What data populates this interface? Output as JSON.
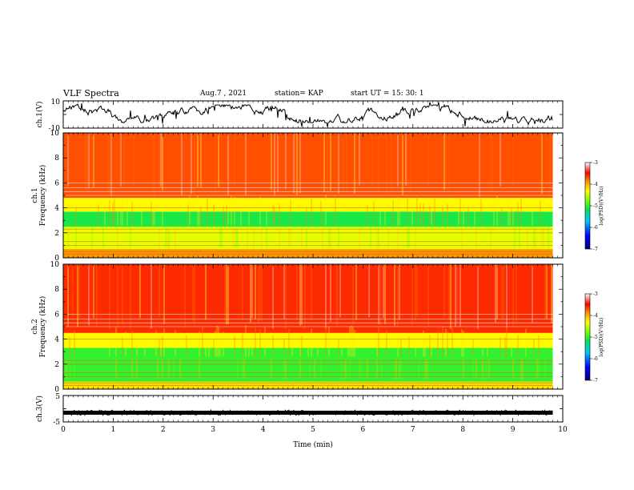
{
  "header": {
    "title": "VLF Spectra",
    "date": "Aug.7 , 2021",
    "station": "station= KAP",
    "start": "start  UT =    15: 30: 1"
  },
  "chart_data": [
    {
      "type": "line",
      "panel": "ch1-waveform",
      "ylabel": "ch.1(V)",
      "ylim": [
        -10,
        10
      ],
      "yticks": [
        "10",
        "-10"
      ],
      "xlim": [
        0,
        10
      ],
      "description": "noisy waveform fluctuating mostly between about -6 V and +7 V over 0 to 9.8 min"
    },
    {
      "type": "heatmap",
      "panel": "ch1-spectrogram",
      "ylabel_lines": [
        "ch.1",
        "Frequency  (kHz)"
      ],
      "ylim": [
        0,
        10
      ],
      "yticks": [
        "0",
        "2",
        "4",
        "6",
        "8",
        "10"
      ],
      "xlim": [
        0,
        9.8
      ],
      "bands": [
        {
          "from": 0,
          "to": 0.7,
          "level": -3.9
        },
        {
          "from": 0.7,
          "to": 2.5,
          "level": -4.4
        },
        {
          "from": 2.5,
          "to": 3.7,
          "level": -5.1
        },
        {
          "from": 3.7,
          "to": 4.8,
          "level": -4.3
        },
        {
          "from": 4.8,
          "to": 10,
          "level": -3.7
        }
      ],
      "colorbar": {
        "label": "log(PSD)(V²/Hz)",
        "ticks": [
          "-3",
          "-4",
          "-5",
          "-6",
          "-7"
        ],
        "range": [
          -7,
          -3
        ]
      }
    },
    {
      "type": "heatmap",
      "panel": "ch2-spectrogram",
      "ylabel_lines": [
        "ch.2",
        "Frequency  (kHz)"
      ],
      "ylim": [
        0,
        10
      ],
      "yticks": [
        "0",
        "2",
        "4",
        "6",
        "8",
        "10"
      ],
      "xlim": [
        0,
        9.8
      ],
      "bands": [
        {
          "from": 0,
          "to": 0.6,
          "level": -4.2
        },
        {
          "from": 0.6,
          "to": 2.0,
          "level": -5.0
        },
        {
          "from": 2.0,
          "to": 3.3,
          "level": -5.0
        },
        {
          "from": 3.3,
          "to": 4.5,
          "level": -4.3
        },
        {
          "from": 4.5,
          "to": 10,
          "level": -3.6
        }
      ],
      "colorbar": {
        "label": "log(PSD)(V²/Hz)",
        "ticks": [
          "-3",
          "-4",
          "-5",
          "-6",
          "-7"
        ],
        "range": [
          -7,
          -3
        ]
      }
    },
    {
      "type": "line",
      "panel": "ch3-waveform",
      "ylabel": "ch.3(V)",
      "ylim": [
        -5,
        5
      ],
      "yticks": [
        "5",
        "-5"
      ],
      "xlim": [
        0,
        10
      ],
      "description": "flat noisy band near -1.5 V over 0 to 9.8 min"
    }
  ],
  "xaxis": {
    "label": "Time  (min)",
    "ticks": [
      "0",
      "1",
      "2",
      "3",
      "4",
      "5",
      "6",
      "7",
      "8",
      "9",
      "10"
    ],
    "range": [
      0,
      10
    ]
  }
}
